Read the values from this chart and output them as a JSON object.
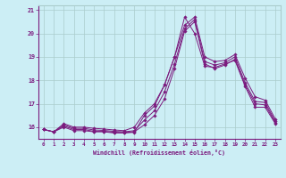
{
  "xlabel": "Windchill (Refroidissement éolien,°C)",
  "bg_color": "#cceef5",
  "line_color": "#7b1a7e",
  "grid_color": "#aacccc",
  "x_values": [
    0,
    1,
    2,
    3,
    4,
    5,
    6,
    7,
    8,
    9,
    10,
    11,
    12,
    13,
    14,
    15,
    16,
    17,
    18,
    19,
    20,
    21,
    22,
    23
  ],
  "ylim": [
    15.5,
    21.2
  ],
  "xlim": [
    -0.5,
    23.5
  ],
  "series": [
    [
      15.9,
      15.8,
      16.0,
      15.85,
      15.85,
      15.8,
      15.8,
      15.75,
      15.75,
      15.78,
      16.5,
      16.9,
      17.8,
      19.0,
      20.7,
      20.0,
      18.6,
      18.55,
      18.7,
      18.85,
      17.75,
      16.85,
      16.85,
      16.15
    ],
    [
      15.9,
      15.8,
      16.05,
      15.9,
      15.9,
      15.82,
      15.82,
      15.78,
      15.77,
      15.8,
      16.1,
      16.5,
      17.2,
      18.5,
      20.1,
      20.5,
      18.7,
      18.5,
      18.65,
      18.9,
      17.8,
      17.0,
      16.95,
      16.2
    ],
    [
      15.9,
      15.8,
      16.1,
      15.95,
      15.95,
      15.88,
      15.86,
      15.82,
      15.8,
      15.85,
      16.3,
      16.7,
      17.5,
      18.7,
      20.2,
      20.6,
      18.8,
      18.65,
      18.75,
      19.0,
      17.9,
      17.1,
      17.05,
      16.25
    ],
    [
      15.9,
      15.8,
      16.15,
      16.0,
      16.0,
      15.95,
      15.92,
      15.88,
      15.85,
      16.0,
      16.6,
      17.0,
      17.8,
      19.0,
      20.35,
      20.7,
      19.0,
      18.8,
      18.85,
      19.1,
      18.1,
      17.3,
      17.15,
      16.35
    ]
  ]
}
